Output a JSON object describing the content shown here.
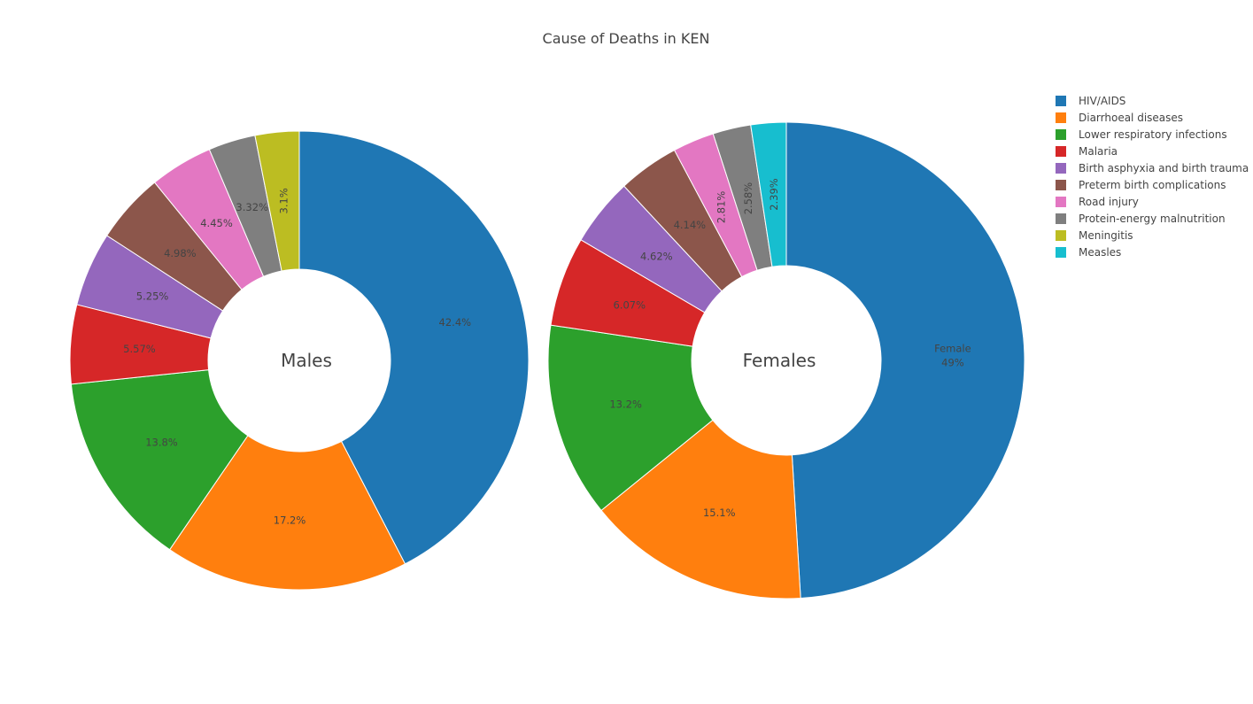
{
  "chart_data": {
    "type": "pie",
    "title": "Cause of Deaths in KEN",
    "legend_placement": "top-right",
    "labels": [
      "HIV/AIDS",
      "Diarrhoeal diseases",
      "Lower respiratory infections",
      "Malaria",
      "Birth asphyxia and birth trauma",
      "Preterm birth complications",
      "Road injury",
      "Protein-energy malnutrition",
      "Meningitis",
      "Measles"
    ],
    "colors": [
      "#1f77b4",
      "#ff7f0e",
      "#2ca02c",
      "#d62728",
      "#9467bd",
      "#8c564b",
      "#e377c2",
      "#7f7f7f",
      "#bcbd22",
      "#17becf"
    ],
    "pies": [
      {
        "name": "Males",
        "values": [
          42.4,
          17.2,
          13.8,
          5.57,
          5.25,
          4.98,
          4.45,
          3.32,
          3.1,
          0
        ],
        "slice_labels": [
          "42.4%",
          "17.2%",
          "13.8%",
          "5.57%",
          "5.25%",
          "4.98%",
          "4.45%",
          "3.32%",
          "3.1%",
          ""
        ]
      },
      {
        "name": "Females",
        "values": [
          49,
          15.1,
          13.2,
          6.07,
          4.62,
          4.14,
          2.81,
          2.58,
          0,
          2.39
        ],
        "slice_labels": [
          "Female\n49%",
          "15.1%",
          "13.2%",
          "6.07%",
          "4.62%",
          "4.14%",
          "2.81%",
          "2.58%",
          "",
          "2.39%"
        ]
      }
    ]
  }
}
